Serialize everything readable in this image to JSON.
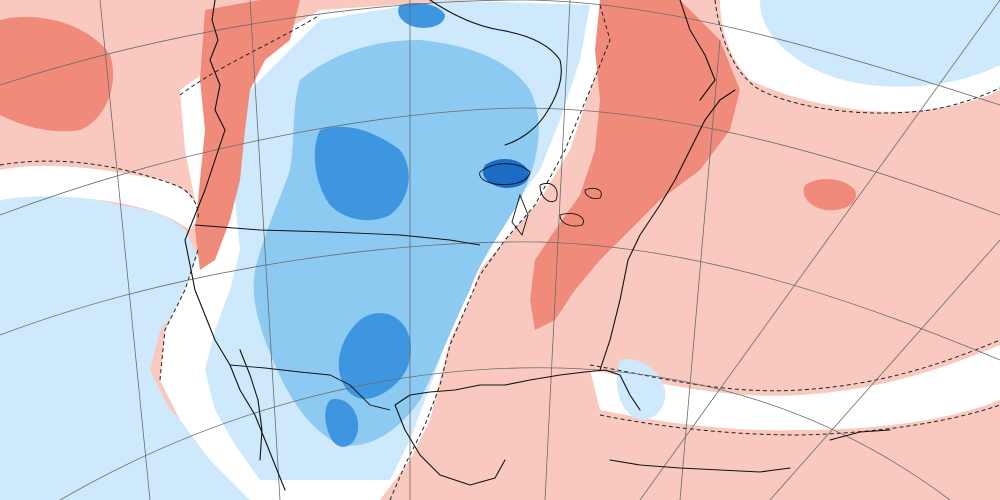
{
  "map": {
    "type": "anomaly-field",
    "colors": {
      "warm_strong": "#f08b7b",
      "warm": "#f9c9bf",
      "neutral": "#ffffff",
      "cool": "#cde9fb",
      "cool_mid": "#8dcaf2",
      "cool_strong": "#3e96e0",
      "cool_deep": "#1b6cc4",
      "graticule": "#6b6b6b",
      "coastline": "#111111"
    }
  }
}
